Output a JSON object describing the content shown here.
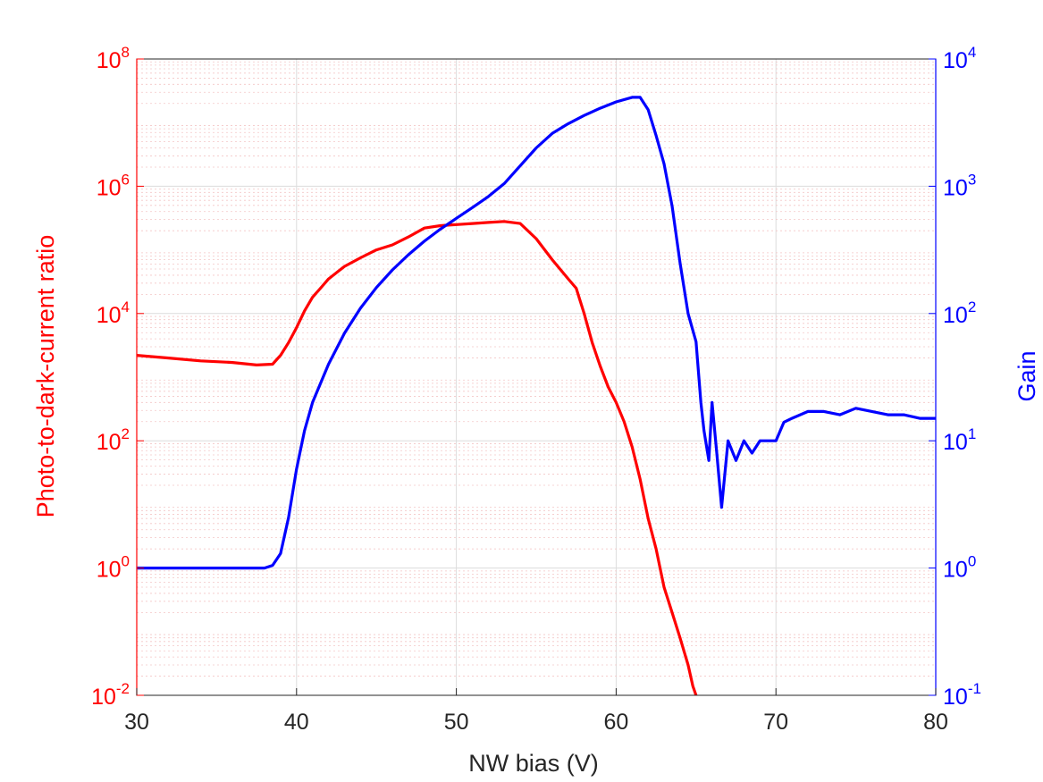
{
  "chart_data": {
    "type": "line",
    "title": "",
    "xlabel": "NW bias (V)",
    "xlim": [
      30,
      80
    ],
    "x_ticks": [
      "30",
      "40",
      "50",
      "60",
      "70",
      "80"
    ],
    "y_left": {
      "label": "Photo-to-dark-current ratio",
      "scale": "log",
      "lim": [
        0.01,
        100000000
      ],
      "tick_exponents": [
        "-2",
        "0",
        "2",
        "4",
        "6",
        "8"
      ],
      "color": "#ff0000"
    },
    "y_right": {
      "label": "Gain",
      "scale": "log",
      "lim": [
        0.1,
        10000
      ],
      "tick_exponents": [
        "-1",
        "0",
        "1",
        "2",
        "3",
        "4"
      ],
      "color": "#0000ff"
    },
    "grid": true,
    "series": [
      {
        "axis": "left",
        "color": "#ff0000",
        "points": [
          [
            30,
            2200
          ],
          [
            32,
            2000
          ],
          [
            34,
            1800
          ],
          [
            36,
            1700
          ],
          [
            37.5,
            1550
          ],
          [
            38.5,
            1600
          ],
          [
            39,
            2200
          ],
          [
            39.5,
            3500
          ],
          [
            40,
            6000
          ],
          [
            40.5,
            11000
          ],
          [
            41,
            18000
          ],
          [
            41.5,
            25000
          ],
          [
            42,
            35000
          ],
          [
            43,
            55000
          ],
          [
            44,
            75000
          ],
          [
            45,
            100000
          ],
          [
            46,
            120000
          ],
          [
            47,
            160000
          ],
          [
            48,
            220000
          ],
          [
            49,
            240000
          ],
          [
            50,
            250000
          ],
          [
            51,
            260000
          ],
          [
            52,
            270000
          ],
          [
            53,
            280000
          ],
          [
            54,
            260000
          ],
          [
            55,
            150000
          ],
          [
            56,
            70000
          ],
          [
            57,
            35000
          ],
          [
            57.5,
            25000
          ],
          [
            58,
            10000
          ],
          [
            58.5,
            3500
          ],
          [
            59,
            1500
          ],
          [
            59.5,
            700
          ],
          [
            60,
            400
          ],
          [
            60.5,
            200
          ],
          [
            61,
            80
          ],
          [
            61.5,
            25
          ],
          [
            62,
            6
          ],
          [
            62.5,
            2
          ],
          [
            63,
            0.5
          ],
          [
            63.5,
            0.2
          ],
          [
            64,
            0.08
          ],
          [
            64.5,
            0.03
          ],
          [
            64.8,
            0.014
          ],
          [
            65,
            0.01
          ]
        ]
      },
      {
        "axis": "right",
        "color": "#0000ff",
        "points": [
          [
            30,
            1.0
          ],
          [
            35,
            1.0
          ],
          [
            38,
            1.0
          ],
          [
            38.5,
            1.05
          ],
          [
            39,
            1.3
          ],
          [
            39.5,
            2.5
          ],
          [
            40,
            6
          ],
          [
            40.5,
            12
          ],
          [
            41,
            20
          ],
          [
            42,
            40
          ],
          [
            43,
            70
          ],
          [
            44,
            110
          ],
          [
            45,
            160
          ],
          [
            46,
            220
          ],
          [
            47,
            290
          ],
          [
            48,
            370
          ],
          [
            49,
            460
          ],
          [
            50,
            560
          ],
          [
            51,
            680
          ],
          [
            52,
            830
          ],
          [
            53,
            1050
          ],
          [
            54,
            1450
          ],
          [
            55,
            2000
          ],
          [
            56,
            2600
          ],
          [
            57,
            3100
          ],
          [
            58,
            3600
          ],
          [
            59,
            4100
          ],
          [
            60,
            4600
          ],
          [
            61,
            5000
          ],
          [
            61.5,
            5000
          ],
          [
            62,
            4000
          ],
          [
            62.5,
            2500
          ],
          [
            63,
            1500
          ],
          [
            63.5,
            700
          ],
          [
            64,
            250
          ],
          [
            64.5,
            100
          ],
          [
            65,
            60
          ],
          [
            65.3,
            20
          ],
          [
            65.5,
            12
          ],
          [
            65.8,
            7
          ],
          [
            66,
            20
          ],
          [
            66.3,
            8
          ],
          [
            66.6,
            3
          ],
          [
            67,
            10
          ],
          [
            67.5,
            7
          ],
          [
            68,
            10
          ],
          [
            68.5,
            8
          ],
          [
            69,
            10
          ],
          [
            70,
            10
          ],
          [
            70.5,
            14
          ],
          [
            71,
            15
          ],
          [
            72,
            17
          ],
          [
            73,
            17
          ],
          [
            74,
            16
          ],
          [
            75,
            18
          ],
          [
            76,
            17
          ],
          [
            77,
            16
          ],
          [
            78,
            16
          ],
          [
            79,
            15
          ],
          [
            80,
            15
          ]
        ]
      }
    ]
  }
}
